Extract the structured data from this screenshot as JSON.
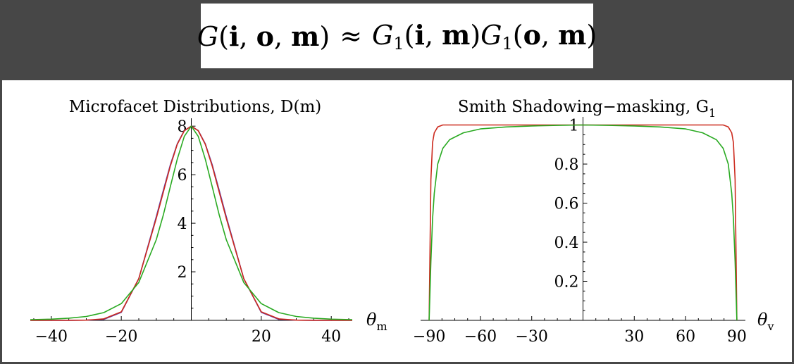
{
  "formula": {
    "lhs_symbol": "G",
    "lhs_args": [
      "i",
      "o",
      "m"
    ],
    "relation": "≈",
    "rhs_symbol": "G",
    "rhs_subscript": "1",
    "rhs_factor1_args": [
      "i",
      "m"
    ],
    "rhs_factor2_args": [
      "o",
      "m"
    ]
  },
  "chart_data": [
    {
      "type": "line",
      "title": "Microfacet Distributions, D(m)",
      "xlabel": "θ",
      "xlabel_subscript": "m",
      "ylabel": "",
      "xlim": [
        -46,
        46
      ],
      "ylim": [
        0,
        8.15
      ],
      "xticks": [
        -40,
        -20,
        20,
        40
      ],
      "xtick_labels": [
        "−40",
        "−20",
        "20",
        "40"
      ],
      "yticks": [
        2,
        4,
        6,
        8
      ],
      "ytick_labels": [
        "2",
        "4",
        "6",
        "8"
      ],
      "x": [
        -46,
        -40,
        -35,
        -30,
        -25,
        -20,
        -15,
        -10,
        -8,
        -6,
        -4,
        -2,
        0,
        2,
        4,
        6,
        8,
        10,
        15,
        20,
        25,
        30,
        35,
        40,
        46
      ],
      "series": [
        {
          "color": "#5a3fb5",
          "values": [
            0.0,
            0.0,
            0.0,
            0.01,
            0.04,
            0.33,
            1.72,
            4.27,
            5.35,
            6.4,
            7.27,
            7.82,
            8.0,
            7.82,
            7.27,
            6.4,
            5.35,
            4.27,
            1.72,
            0.33,
            0.04,
            0.01,
            0.0,
            0.0,
            0.0
          ]
        },
        {
          "color": "#cc2a1e",
          "values": [
            0.0,
            0.0,
            0.0,
            0.01,
            0.06,
            0.35,
            1.72,
            4.2,
            5.28,
            6.35,
            7.25,
            7.81,
            8.0,
            7.81,
            7.25,
            6.35,
            5.28,
            4.2,
            1.72,
            0.35,
            0.06,
            0.01,
            0.0,
            0.0,
            0.0
          ]
        },
        {
          "color": "#2aaa22",
          "values": [
            0.03,
            0.05,
            0.09,
            0.16,
            0.32,
            0.69,
            1.56,
            3.32,
            4.34,
            5.5,
            6.64,
            7.58,
            8.0,
            7.58,
            6.64,
            5.5,
            4.34,
            3.32,
            1.56,
            0.69,
            0.32,
            0.16,
            0.09,
            0.05,
            0.03
          ]
        }
      ]
    },
    {
      "type": "line",
      "title": "Smith Shadowing−masking, G",
      "title_subscript": "1",
      "xlabel": "θ",
      "xlabel_subscript": "v",
      "ylabel": "",
      "xlim": [
        -95,
        95
      ],
      "ylim": [
        0,
        1.02
      ],
      "xticks": [
        -90,
        -60,
        -30,
        30,
        60,
        90
      ],
      "xtick_labels": [
        "−90",
        "−60",
        "−30",
        "30",
        "60",
        "90"
      ],
      "yticks": [
        0.2,
        0.4,
        0.6,
        0.8,
        1
      ],
      "ytick_labels": [
        "0.2",
        "0.4",
        "0.6",
        "0.8",
        "1"
      ],
      "x": [
        -90,
        -89,
        -88,
        -87,
        -85,
        -82,
        -78,
        -70,
        -60,
        -45,
        -30,
        -15,
        0,
        15,
        30,
        45,
        60,
        70,
        78,
        82,
        85,
        87,
        88,
        89,
        90
      ],
      "series": [
        {
          "color": "#cc2a1e",
          "values": [
            0.0,
            0.72,
            0.91,
            0.96,
            0.99,
            1.0,
            1.0,
            1.0,
            1.0,
            1.0,
            1.0,
            1.0,
            1.0,
            1.0,
            1.0,
            1.0,
            1.0,
            1.0,
            1.0,
            1.0,
            0.99,
            0.96,
            0.91,
            0.72,
            0.0
          ]
        },
        {
          "color": "#2aaa22",
          "values": [
            0.0,
            0.3,
            0.52,
            0.65,
            0.8,
            0.88,
            0.925,
            0.96,
            0.98,
            0.99,
            0.995,
            0.998,
            1.0,
            0.998,
            0.995,
            0.99,
            0.98,
            0.96,
            0.925,
            0.88,
            0.8,
            0.65,
            0.52,
            0.3,
            0.0
          ]
        }
      ]
    }
  ]
}
